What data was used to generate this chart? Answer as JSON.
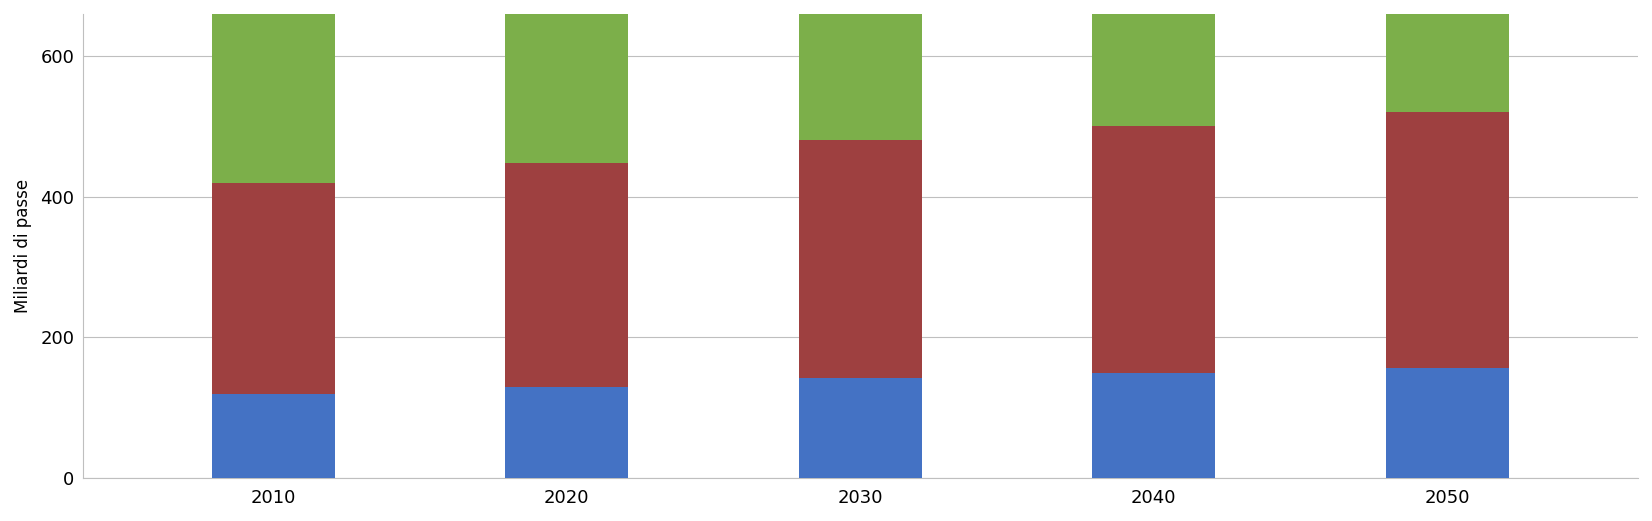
{
  "years": [
    2010,
    2020,
    2030,
    2040,
    2050
  ],
  "blue_values": [
    120,
    130,
    142,
    150,
    157
  ],
  "red_values": [
    300,
    318,
    338,
    350,
    363
  ],
  "green_values": [
    290,
    260,
    230,
    205,
    185
  ],
  "colors": {
    "blue": "#4472C4",
    "red": "#9E4040",
    "green": "#7CAF4A"
  },
  "ylabel": "Miliardi di passe",
  "ylim": [
    0,
    660
  ],
  "yticks": [
    0,
    200,
    400,
    600
  ],
  "bar_width": 0.42,
  "background_color": "#ffffff",
  "grid_color": "#bfbfbf",
  "figsize": [
    16.52,
    5.21
  ],
  "dpi": 100
}
